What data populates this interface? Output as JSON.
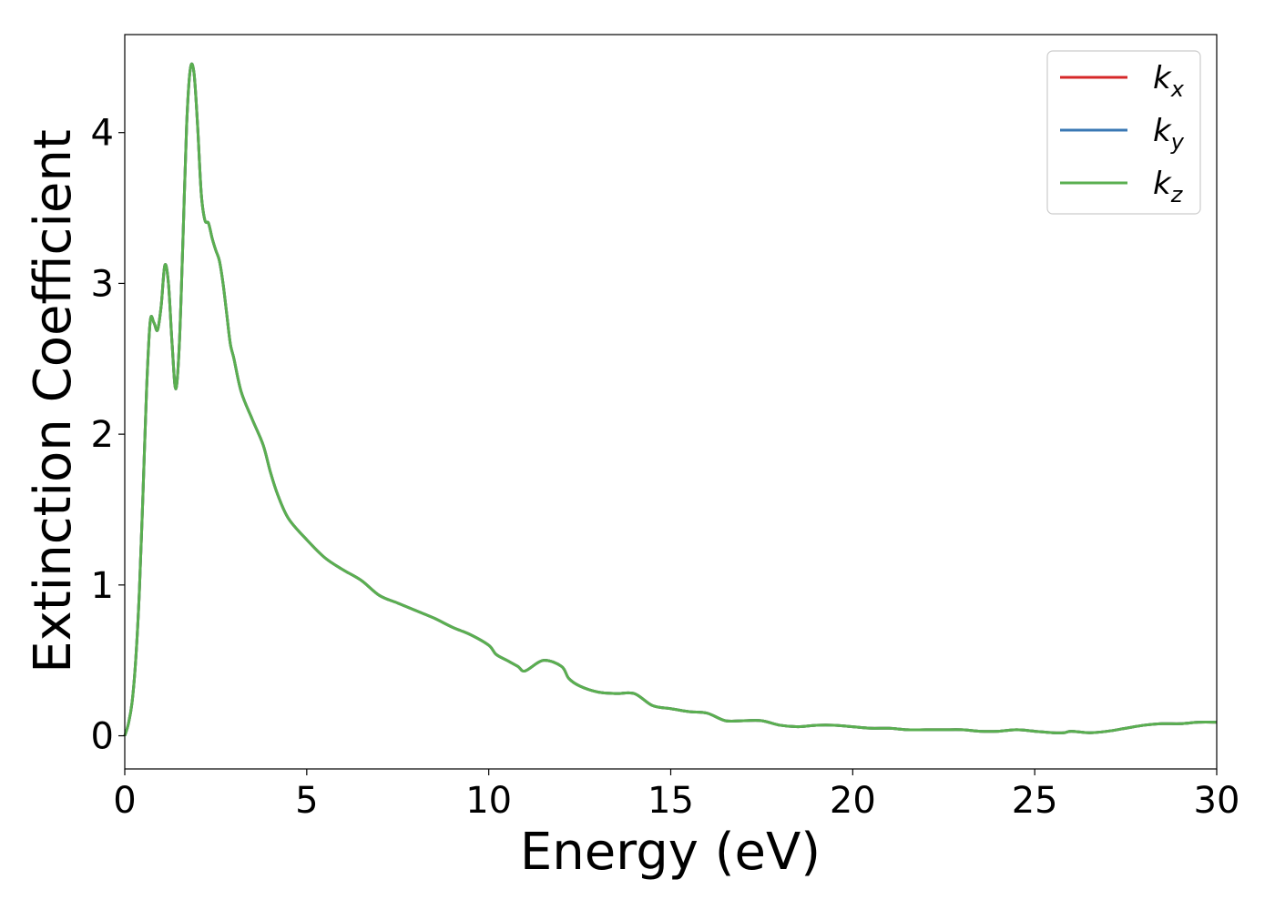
{
  "chart_data": {
    "type": "line",
    "title": "",
    "xlabel": "Energy (eV)",
    "ylabel": "Extinction Coefficient",
    "xlim": [
      0,
      30
    ],
    "ylim": [
      -0.22,
      4.65
    ],
    "xticks": [
      0,
      5,
      10,
      15,
      20,
      25,
      30
    ],
    "xtick_labels": [
      "0",
      "5",
      "10",
      "15",
      "20",
      "25",
      "30"
    ],
    "yticks": [
      0,
      1,
      2,
      3,
      4
    ],
    "ytick_labels": [
      "0",
      "1",
      "2",
      "3",
      "4"
    ],
    "grid": false,
    "legend_position": "top-right",
    "series": [
      {
        "name": "k",
        "subscript": "x",
        "color": "#d62728",
        "x": [],
        "y": []
      },
      {
        "name": "k",
        "subscript": "y",
        "color": "#3a78b4",
        "x": [],
        "y": []
      },
      {
        "name": "k",
        "subscript": "z",
        "color": "#5aaf50",
        "x": [
          0,
          0.1,
          0.2,
          0.3,
          0.4,
          0.5,
          0.6,
          0.7,
          0.8,
          0.9,
          1.0,
          1.1,
          1.2,
          1.3,
          1.4,
          1.5,
          1.6,
          1.7,
          1.8,
          1.9,
          2.0,
          2.1,
          2.2,
          2.3,
          2.4,
          2.5,
          2.6,
          2.7,
          2.8,
          2.9,
          3.0,
          3.2,
          3.5,
          3.8,
          4.0,
          4.2,
          4.5,
          5.0,
          5.5,
          6.0,
          6.5,
          7.0,
          7.5,
          8.0,
          8.5,
          9.0,
          9.5,
          10.0,
          10.2,
          10.5,
          10.8,
          11.0,
          11.5,
          12.0,
          12.2,
          12.5,
          13.0,
          13.5,
          14.0,
          14.5,
          15.0,
          15.5,
          16.0,
          16.5,
          17.0,
          17.5,
          18.0,
          18.5,
          19.0,
          19.5,
          20.0,
          20.5,
          21.0,
          21.5,
          22.0,
          22.5,
          23.0,
          23.5,
          24.0,
          24.5,
          25.0,
          25.5,
          25.8,
          26.0,
          26.5,
          27.0,
          27.5,
          28.0,
          28.5,
          29.0,
          29.5,
          30.0
        ],
        "y": [
          0.0,
          0.08,
          0.22,
          0.5,
          0.95,
          1.6,
          2.3,
          2.75,
          2.74,
          2.69,
          2.85,
          3.12,
          3.0,
          2.6,
          2.3,
          2.6,
          3.3,
          4.05,
          4.42,
          4.4,
          4.05,
          3.6,
          3.42,
          3.4,
          3.3,
          3.22,
          3.15,
          3.0,
          2.8,
          2.6,
          2.5,
          2.28,
          2.1,
          1.93,
          1.75,
          1.6,
          1.44,
          1.3,
          1.18,
          1.1,
          1.03,
          0.93,
          0.88,
          0.83,
          0.78,
          0.72,
          0.67,
          0.6,
          0.54,
          0.5,
          0.46,
          0.43,
          0.5,
          0.46,
          0.38,
          0.33,
          0.29,
          0.28,
          0.28,
          0.2,
          0.18,
          0.16,
          0.15,
          0.1,
          0.1,
          0.1,
          0.07,
          0.06,
          0.07,
          0.07,
          0.06,
          0.05,
          0.05,
          0.04,
          0.04,
          0.04,
          0.04,
          0.03,
          0.03,
          0.04,
          0.03,
          0.02,
          0.02,
          0.03,
          0.02,
          0.03,
          0.05,
          0.07,
          0.08,
          0.08,
          0.09,
          0.09
        ]
      }
    ]
  }
}
